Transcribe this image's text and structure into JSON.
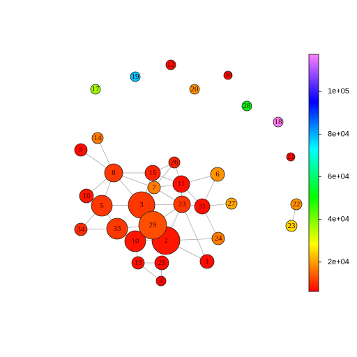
{
  "chart_data": {
    "type": "network",
    "nodes": [
      {
        "label": "1",
        "value": 7000
      },
      {
        "label": "2",
        "value": 8000
      },
      {
        "label": "3",
        "value": 11000
      },
      {
        "label": "4",
        "value": 6500
      },
      {
        "label": "5",
        "value": 11000
      },
      {
        "label": "6",
        "value": 19000
      },
      {
        "label": "7",
        "value": 17000
      },
      {
        "label": "8",
        "value": 11000
      },
      {
        "label": "9",
        "value": 7000
      },
      {
        "label": "10",
        "value": 8000
      },
      {
        "label": "11",
        "value": 7500
      },
      {
        "label": "12",
        "value": 7000
      },
      {
        "label": "13",
        "value": 7500
      },
      {
        "label": "14",
        "value": 17000
      },
      {
        "label": "15",
        "value": 9000
      },
      {
        "label": "16",
        "value": 8000
      },
      {
        "label": "17",
        "value": 37000
      },
      {
        "label": "18",
        "value": 117000
      },
      {
        "label": "19",
        "value": 78000
      },
      {
        "label": "20",
        "value": 19000
      },
      {
        "label": "21",
        "value": 7000
      },
      {
        "label": "22",
        "value": 19000
      },
      {
        "label": "23",
        "value": 11000
      },
      {
        "label": "24",
        "value": 17000
      },
      {
        "label": "25",
        "value": 7000
      },
      {
        "label": "26",
        "value": 9000
      },
      {
        "label": "27",
        "value": 21000
      },
      {
        "label": "28",
        "value": 52000
      },
      {
        "label": "29",
        "value": 13000
      },
      {
        "label": "30",
        "value": 7000
      },
      {
        "label": "31",
        "value": 7500
      },
      {
        "label": "23",
        "value": 25000
      },
      {
        "label": "33",
        "value": 11000
      },
      {
        "label": "34",
        "value": 10000
      }
    ],
    "colorbar_lim": [
      6200,
      117400
    ],
    "colorbar_ticks": [
      {
        "value": 20000,
        "label": "2e+04"
      },
      {
        "value": 40000,
        "label": "4e+04"
      },
      {
        "value": 60000,
        "label": "6e+04"
      },
      {
        "value": 80000,
        "label": "8e+04"
      },
      {
        "value": 100000,
        "label": "1e+05"
      }
    ]
  }
}
